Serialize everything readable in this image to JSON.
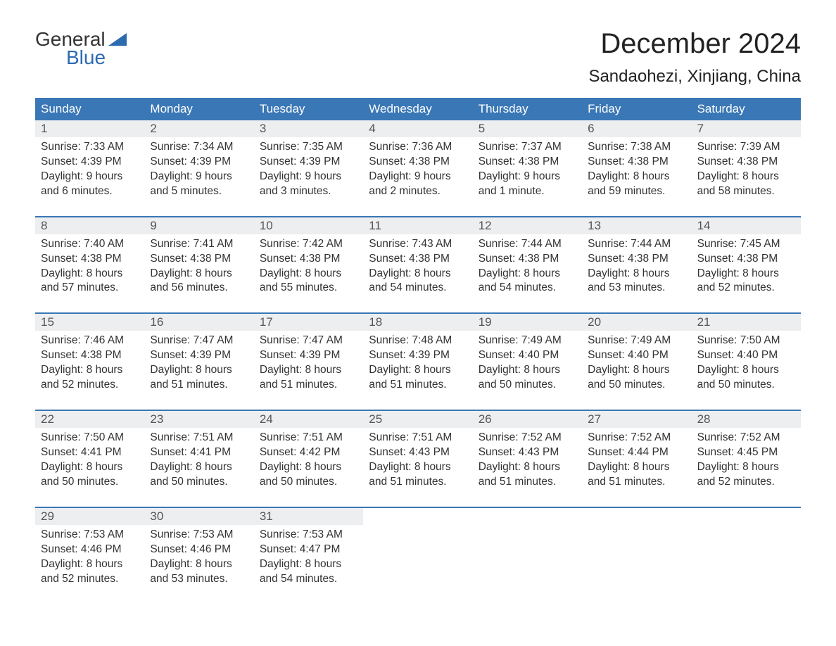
{
  "brand": {
    "line1": "General",
    "line2": "Blue",
    "brand_color": "#2d6bb0"
  },
  "title": "December 2024",
  "location": "Sandaohezi, Xinjiang, China",
  "colors": {
    "header_bg": "#3a77b6",
    "header_text": "#ffffff",
    "daynum_bg": "#eceeef",
    "daynum_text": "#555555",
    "body_text": "#333333",
    "week_divider": "#3a77b6",
    "page_bg": "#ffffff"
  },
  "fonts": {
    "title_size_pt": 40,
    "location_size_pt": 24,
    "header_size_pt": 17,
    "body_size_pt": 15.5
  },
  "day_headers": [
    "Sunday",
    "Monday",
    "Tuesday",
    "Wednesday",
    "Thursday",
    "Friday",
    "Saturday"
  ],
  "weeks": [
    [
      {
        "n": "1",
        "sunrise": "7:33 AM",
        "sunset": "4:39 PM",
        "daylight": "9 hours and 6 minutes."
      },
      {
        "n": "2",
        "sunrise": "7:34 AM",
        "sunset": "4:39 PM",
        "daylight": "9 hours and 5 minutes."
      },
      {
        "n": "3",
        "sunrise": "7:35 AM",
        "sunset": "4:39 PM",
        "daylight": "9 hours and 3 minutes."
      },
      {
        "n": "4",
        "sunrise": "7:36 AM",
        "sunset": "4:38 PM",
        "daylight": "9 hours and 2 minutes."
      },
      {
        "n": "5",
        "sunrise": "7:37 AM",
        "sunset": "4:38 PM",
        "daylight": "9 hours and 1 minute."
      },
      {
        "n": "6",
        "sunrise": "7:38 AM",
        "sunset": "4:38 PM",
        "daylight": "8 hours and 59 minutes."
      },
      {
        "n": "7",
        "sunrise": "7:39 AM",
        "sunset": "4:38 PM",
        "daylight": "8 hours and 58 minutes."
      }
    ],
    [
      {
        "n": "8",
        "sunrise": "7:40 AM",
        "sunset": "4:38 PM",
        "daylight": "8 hours and 57 minutes."
      },
      {
        "n": "9",
        "sunrise": "7:41 AM",
        "sunset": "4:38 PM",
        "daylight": "8 hours and 56 minutes."
      },
      {
        "n": "10",
        "sunrise": "7:42 AM",
        "sunset": "4:38 PM",
        "daylight": "8 hours and 55 minutes."
      },
      {
        "n": "11",
        "sunrise": "7:43 AM",
        "sunset": "4:38 PM",
        "daylight": "8 hours and 54 minutes."
      },
      {
        "n": "12",
        "sunrise": "7:44 AM",
        "sunset": "4:38 PM",
        "daylight": "8 hours and 54 minutes."
      },
      {
        "n": "13",
        "sunrise": "7:44 AM",
        "sunset": "4:38 PM",
        "daylight": "8 hours and 53 minutes."
      },
      {
        "n": "14",
        "sunrise": "7:45 AM",
        "sunset": "4:38 PM",
        "daylight": "8 hours and 52 minutes."
      }
    ],
    [
      {
        "n": "15",
        "sunrise": "7:46 AM",
        "sunset": "4:38 PM",
        "daylight": "8 hours and 52 minutes."
      },
      {
        "n": "16",
        "sunrise": "7:47 AM",
        "sunset": "4:39 PM",
        "daylight": "8 hours and 51 minutes."
      },
      {
        "n": "17",
        "sunrise": "7:47 AM",
        "sunset": "4:39 PM",
        "daylight": "8 hours and 51 minutes."
      },
      {
        "n": "18",
        "sunrise": "7:48 AM",
        "sunset": "4:39 PM",
        "daylight": "8 hours and 51 minutes."
      },
      {
        "n": "19",
        "sunrise": "7:49 AM",
        "sunset": "4:40 PM",
        "daylight": "8 hours and 50 minutes."
      },
      {
        "n": "20",
        "sunrise": "7:49 AM",
        "sunset": "4:40 PM",
        "daylight": "8 hours and 50 minutes."
      },
      {
        "n": "21",
        "sunrise": "7:50 AM",
        "sunset": "4:40 PM",
        "daylight": "8 hours and 50 minutes."
      }
    ],
    [
      {
        "n": "22",
        "sunrise": "7:50 AM",
        "sunset": "4:41 PM",
        "daylight": "8 hours and 50 minutes."
      },
      {
        "n": "23",
        "sunrise": "7:51 AM",
        "sunset": "4:41 PM",
        "daylight": "8 hours and 50 minutes."
      },
      {
        "n": "24",
        "sunrise": "7:51 AM",
        "sunset": "4:42 PM",
        "daylight": "8 hours and 50 minutes."
      },
      {
        "n": "25",
        "sunrise": "7:51 AM",
        "sunset": "4:43 PM",
        "daylight": "8 hours and 51 minutes."
      },
      {
        "n": "26",
        "sunrise": "7:52 AM",
        "sunset": "4:43 PM",
        "daylight": "8 hours and 51 minutes."
      },
      {
        "n": "27",
        "sunrise": "7:52 AM",
        "sunset": "4:44 PM",
        "daylight": "8 hours and 51 minutes."
      },
      {
        "n": "28",
        "sunrise": "7:52 AM",
        "sunset": "4:45 PM",
        "daylight": "8 hours and 52 minutes."
      }
    ],
    [
      {
        "n": "29",
        "sunrise": "7:53 AM",
        "sunset": "4:46 PM",
        "daylight": "8 hours and 52 minutes."
      },
      {
        "n": "30",
        "sunrise": "7:53 AM",
        "sunset": "4:46 PM",
        "daylight": "8 hours and 53 minutes."
      },
      {
        "n": "31",
        "sunrise": "7:53 AM",
        "sunset": "4:47 PM",
        "daylight": "8 hours and 54 minutes."
      },
      null,
      null,
      null,
      null
    ]
  ],
  "labels": {
    "sunrise": "Sunrise:",
    "sunset": "Sunset:",
    "daylight": "Daylight:"
  }
}
